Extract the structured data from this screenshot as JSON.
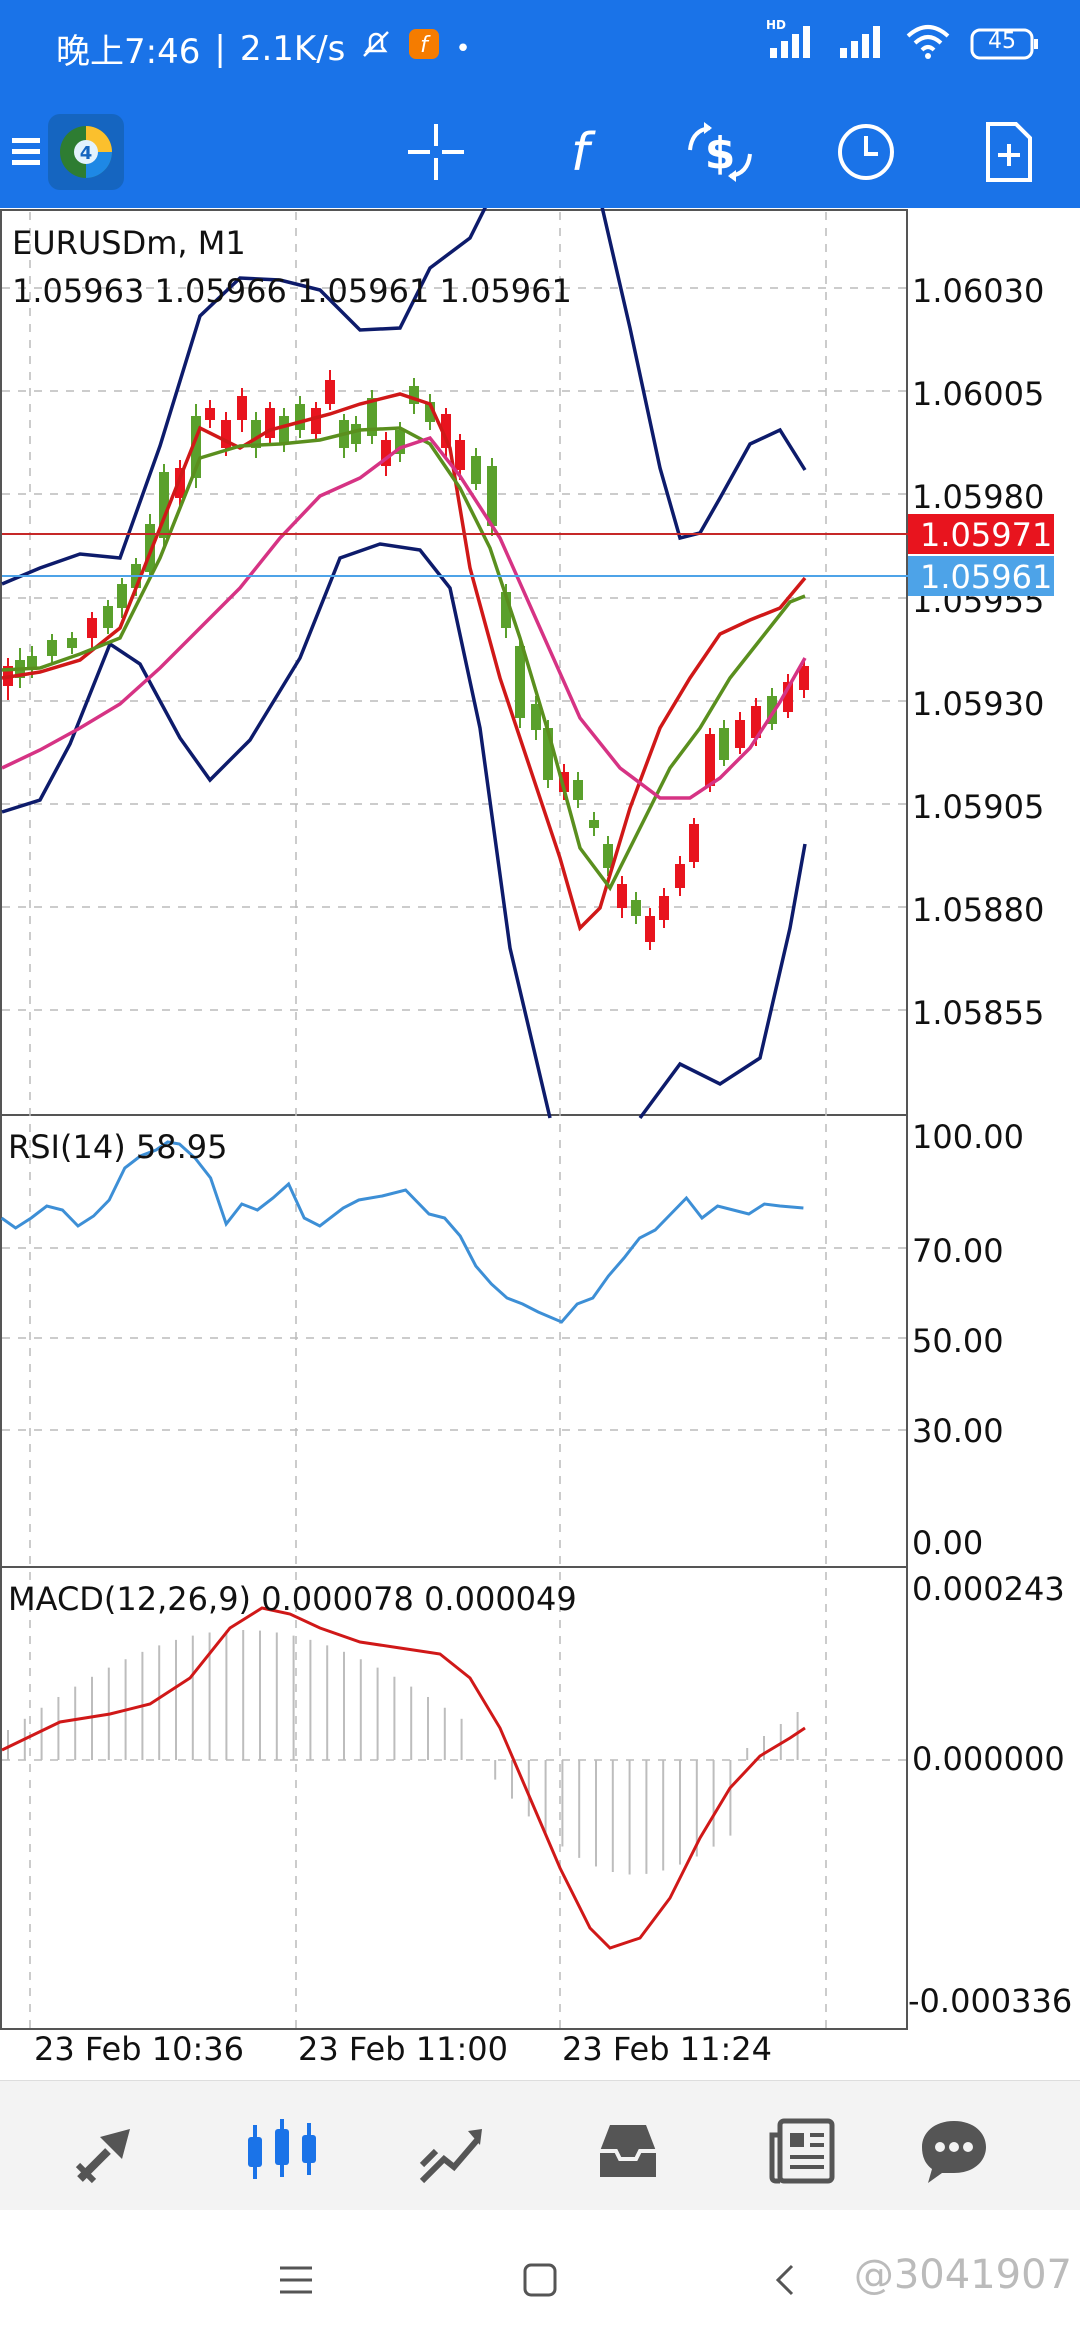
{
  "status": {
    "time": "晚上7:46",
    "speed": "2.1K/s",
    "dot": "•",
    "signal_tag": "HD",
    "battery": "45"
  },
  "chart": {
    "symbol": "EURUSDm, M1",
    "ohlc": "1.05963 1.05966 1.05961 1.05961",
    "price_ticks": [
      "1.06030",
      "1.06005",
      "1.05980",
      "1.05955",
      "1.05930",
      "1.05905",
      "1.05880",
      "1.05855"
    ],
    "ask_tag": "1.05971",
    "bid_tag": "1.05961",
    "ask_color": "#e8141e",
    "bid_color": "#4da3e8",
    "bull_color": "#5aa02c",
    "bear_color": "#e8141e",
    "rsi_title": "RSI(14) 58.95",
    "rsi_ticks": [
      "100.00",
      "70.00",
      "50.00",
      "30.00",
      "0.00"
    ],
    "macd_title": "MACD(12,26,9) 0.000078 0.000049",
    "macd_ticks": [
      "0.000243",
      "0.000000",
      "-0.000336"
    ],
    "time_labels": [
      "23 Feb 10:36",
      "23 Feb 11:00",
      "23 Feb 11:24"
    ]
  },
  "icons": {
    "toolbar": [
      "menu-icon",
      "metatrader-logo-icon",
      "crosshair-icon",
      "function-icon",
      "currency-exchange-icon",
      "clock-icon",
      "new-document-icon"
    ],
    "bottom": [
      "quotes-icon",
      "chart-icon",
      "trade-icon",
      "history-icon",
      "news-icon",
      "chat-icon"
    ],
    "system": [
      "recents-icon",
      "home-icon",
      "back-icon"
    ]
  },
  "watermark": "@3041907"
}
